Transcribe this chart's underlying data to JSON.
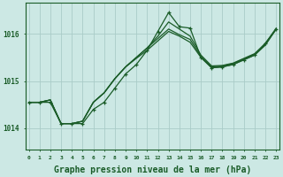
{
  "background_color": "#cce8e4",
  "grid_color": "#aaccc8",
  "line_color": "#1a5c28",
  "marker_color": "#1a5c28",
  "xlabel": "Graphe pression niveau de la mer (hPa)",
  "xlabel_fontsize": 7,
  "xtick_labels": [
    "0",
    "1",
    "2",
    "3",
    "4",
    "5",
    "6",
    "7",
    "8",
    "9",
    "10",
    "11",
    "12",
    "13",
    "14",
    "15",
    "16",
    "17",
    "18",
    "19",
    "20",
    "21",
    "22",
    "23"
  ],
  "ytick_labels": [
    "1014",
    "1015",
    "1016"
  ],
  "ylim": [
    1013.55,
    1016.65
  ],
  "xlim": [
    -0.3,
    23.3
  ],
  "series": [
    {
      "x": [
        0,
        1,
        2,
        3,
        4,
        5,
        6,
        7,
        8,
        9,
        10,
        11,
        12,
        13,
        14,
        15,
        16,
        17,
        18,
        19,
        20,
        21,
        22,
        23
      ],
      "y": [
        1014.55,
        1014.55,
        1014.55,
        1014.1,
        1014.1,
        1014.1,
        1014.4,
        1014.55,
        1014.85,
        1015.15,
        1015.35,
        1015.65,
        1016.05,
        1016.45,
        1016.15,
        1016.12,
        1015.5,
        1015.28,
        1015.3,
        1015.35,
        1015.45,
        1015.55,
        1015.8,
        1016.1
      ],
      "has_markers": true
    },
    {
      "x": [
        0,
        1,
        2,
        3,
        4,
        5,
        6,
        7,
        8,
        9,
        10,
        11,
        12,
        13,
        14,
        15,
        16,
        17,
        18,
        19,
        20,
        21,
        22,
        23
      ],
      "y": [
        1014.55,
        1014.55,
        1014.6,
        1014.1,
        1014.1,
        1014.15,
        1014.55,
        1014.75,
        1015.05,
        1015.3,
        1015.5,
        1015.7,
        1015.95,
        1016.25,
        1016.1,
        1015.95,
        1015.55,
        1015.32,
        1015.33,
        1015.38,
        1015.48,
        1015.58,
        1015.8,
        1016.12
      ],
      "has_markers": false
    },
    {
      "x": [
        0,
        1,
        2,
        3,
        4,
        5,
        6,
        7,
        8,
        9,
        10,
        11,
        12,
        13,
        14,
        15,
        16,
        17,
        18,
        19,
        20,
        21,
        22,
        23
      ],
      "y": [
        1014.55,
        1014.55,
        1014.6,
        1014.1,
        1014.1,
        1014.15,
        1014.55,
        1014.75,
        1015.05,
        1015.3,
        1015.5,
        1015.7,
        1015.9,
        1016.1,
        1015.98,
        1015.88,
        1015.52,
        1015.3,
        1015.32,
        1015.37,
        1015.47,
        1015.57,
        1015.78,
        1016.1
      ],
      "has_markers": false
    },
    {
      "x": [
        0,
        1,
        2,
        3,
        4,
        5,
        6,
        7,
        8,
        9,
        10,
        11,
        12,
        13,
        14,
        15,
        16,
        17,
        18,
        19,
        20,
        21,
        22,
        23
      ],
      "y": [
        1014.55,
        1014.55,
        1014.6,
        1014.1,
        1014.1,
        1014.15,
        1014.55,
        1014.75,
        1015.05,
        1015.3,
        1015.48,
        1015.65,
        1015.85,
        1016.05,
        1015.95,
        1015.82,
        1015.5,
        1015.28,
        1015.3,
        1015.35,
        1015.45,
        1015.55,
        1015.76,
        1016.1
      ],
      "has_markers": false
    }
  ]
}
